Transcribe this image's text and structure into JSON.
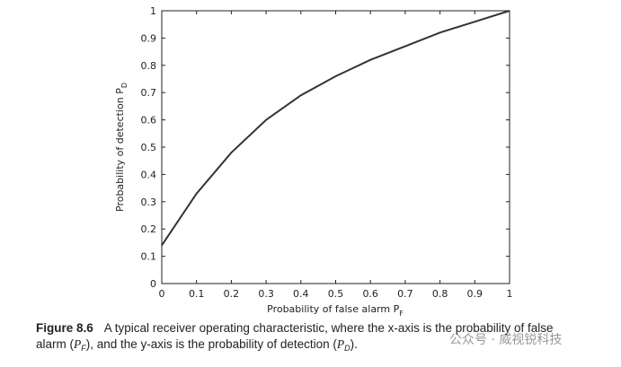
{
  "chart_data": {
    "type": "line",
    "xlabel": {
      "text": "Probability of false alarm P",
      "sub": "F"
    },
    "ylabel": {
      "text": "Probability of detection P",
      "sub": "D"
    },
    "x": [
      0,
      0.1,
      0.2,
      0.3,
      0.4,
      0.5,
      0.6,
      0.7,
      0.8,
      0.9,
      1
    ],
    "series": [
      {
        "color": "#333333",
        "values": [
          0.14,
          0.33,
          0.48,
          0.6,
          0.69,
          0.76,
          0.82,
          0.87,
          0.92,
          0.96,
          1
        ]
      }
    ],
    "xlim": [
      0,
      1
    ],
    "ylim": [
      0,
      1
    ],
    "xticks": [
      0,
      0.1,
      0.2,
      0.3,
      0.4,
      0.5,
      0.6,
      0.7,
      0.8,
      0.9,
      1
    ],
    "yticks": [
      0,
      0.1,
      0.2,
      0.3,
      0.4,
      0.5,
      0.6,
      0.7,
      0.8,
      0.9,
      1
    ]
  },
  "caption": {
    "label": "Figure 8.6",
    "line1": "A typical receiver operating characteristic, where the x-axis is the probability of false",
    "line2": [
      "alarm (",
      "P",
      "F",
      "), and the y-axis is the probability of detection (",
      "P",
      "D",
      ")."
    ]
  },
  "watermark": "公众号 · 威视锐科技"
}
